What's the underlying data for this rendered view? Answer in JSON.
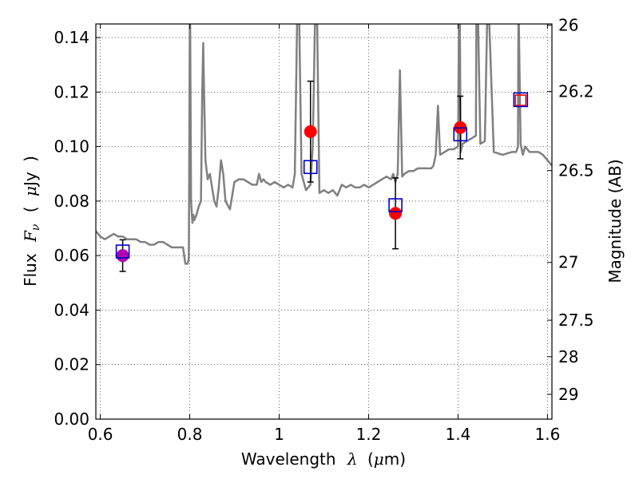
{
  "chart_data": {
    "type": "line",
    "title": "",
    "xlabel": {
      "prefix": "Wavelength",
      "symbol": "λ",
      "unit_open": "(",
      "unit_mu": "μ",
      "unit_rest": "m)"
    },
    "ylabel": {
      "prefix": "Flux",
      "symbol": "F",
      "sub": "ν",
      "paren_open": "(",
      "unit_mu": "μ",
      "unit_rest": "Jy",
      "paren_close": ")"
    },
    "y2label": "Magnitude (AB)",
    "xlim": [
      0.59,
      1.61
    ],
    "ylim": [
      0.0,
      0.145
    ],
    "grid": true,
    "x_ticks": [
      0.6,
      0.8,
      1.0,
      1.2,
      1.4,
      1.6
    ],
    "x_tick_labels": [
      "0.6",
      "0.8",
      "1",
      "1.2",
      "1.4",
      "1.6"
    ],
    "y_ticks": [
      0.0,
      0.02,
      0.04,
      0.06,
      0.08,
      0.1,
      0.12,
      0.14
    ],
    "y_tick_labels": [
      "0.00",
      "0.02",
      "0.04",
      "0.06",
      "0.08",
      "0.10",
      "0.12",
      "0.14"
    ],
    "y2_ticks": [
      {
        "label": "26",
        "flux": 0.1445
      },
      {
        "label": "26.2",
        "flux": 0.1202
      },
      {
        "label": "26.5",
        "flux": 0.0912
      },
      {
        "label": "27",
        "flux": 0.0575
      },
      {
        "label": "27.5",
        "flux": 0.0363
      },
      {
        "label": "28",
        "flux": 0.0229
      },
      {
        "label": "29",
        "flux": 0.0091
      }
    ],
    "colors": {
      "model": "#808080",
      "observed": "#ff0000",
      "synthetic": "#0000cc",
      "single_band": "#b000b0",
      "errorbar": "#000000"
    },
    "series": [
      {
        "kind": "model_spectrum",
        "x": [
          0.59,
          0.6,
          0.61,
          0.62,
          0.63,
          0.64,
          0.65,
          0.66,
          0.67,
          0.68,
          0.69,
          0.7,
          0.71,
          0.72,
          0.73,
          0.74,
          0.75,
          0.76,
          0.77,
          0.78,
          0.785,
          0.79,
          0.795,
          0.798,
          0.8,
          0.801,
          0.803,
          0.806,
          0.808,
          0.81,
          0.815,
          0.82,
          0.825,
          0.828,
          0.83,
          0.832,
          0.835,
          0.84,
          0.845,
          0.85,
          0.855,
          0.86,
          0.865,
          0.87,
          0.875,
          0.88,
          0.89,
          0.9,
          0.91,
          0.92,
          0.93,
          0.94,
          0.95,
          0.955,
          0.96,
          0.965,
          0.97,
          0.98,
          0.99,
          1.0,
          1.01,
          1.02,
          1.03,
          1.035,
          1.04,
          1.045,
          1.05,
          1.055,
          1.06,
          1.065,
          1.07,
          1.075,
          1.08,
          1.085,
          1.09,
          1.1,
          1.11,
          1.12,
          1.13,
          1.14,
          1.15,
          1.16,
          1.17,
          1.18,
          1.19,
          1.2,
          1.21,
          1.22,
          1.23,
          1.24,
          1.25,
          1.255,
          1.26,
          1.265,
          1.27,
          1.275,
          1.28,
          1.29,
          1.3,
          1.31,
          1.32,
          1.33,
          1.34,
          1.345,
          1.35,
          1.355,
          1.36,
          1.37,
          1.38,
          1.39,
          1.4,
          1.402,
          1.404,
          1.406,
          1.41,
          1.42,
          1.44,
          1.441,
          1.445,
          1.45,
          1.46,
          1.465,
          1.47,
          1.48,
          1.5,
          1.52,
          1.53,
          1.534,
          1.535,
          1.536,
          1.54,
          1.545,
          1.55,
          1.56,
          1.57,
          1.58,
          1.59,
          1.6,
          1.61
        ],
        "y": [
          0.069,
          0.067,
          0.066,
          0.067,
          0.068,
          0.067,
          0.067,
          0.066,
          0.066,
          0.066,
          0.065,
          0.065,
          0.064,
          0.064,
          0.065,
          0.065,
          0.064,
          0.063,
          0.063,
          0.063,
          0.063,
          0.057,
          0.057,
          0.059,
          0.145,
          0.145,
          0.08,
          0.072,
          0.075,
          0.073,
          0.075,
          0.078,
          0.08,
          0.12,
          0.138,
          0.12,
          0.095,
          0.088,
          0.09,
          0.085,
          0.08,
          0.078,
          0.085,
          0.095,
          0.09,
          0.08,
          0.077,
          0.087,
          0.088,
          0.088,
          0.087,
          0.086,
          0.086,
          0.09,
          0.087,
          0.088,
          0.087,
          0.086,
          0.087,
          0.086,
          0.085,
          0.086,
          0.085,
          0.09,
          0.145,
          0.145,
          0.09,
          0.087,
          0.084,
          0.085,
          0.086,
          0.1,
          0.145,
          0.145,
          0.083,
          0.084,
          0.083,
          0.084,
          0.082,
          0.086,
          0.085,
          0.086,
          0.085,
          0.085,
          0.086,
          0.085,
          0.086,
          0.087,
          0.088,
          0.089,
          0.088,
          0.09,
          0.087,
          0.09,
          0.128,
          0.089,
          0.09,
          0.091,
          0.091,
          0.092,
          0.092,
          0.092,
          0.092,
          0.093,
          0.097,
          0.115,
          0.097,
          0.098,
          0.099,
          0.099,
          0.1,
          0.145,
          0.145,
          0.098,
          0.101,
          0.102,
          0.104,
          0.145,
          0.145,
          0.101,
          0.102,
          0.145,
          0.145,
          0.098,
          0.097,
          0.098,
          0.098,
          0.1,
          0.145,
          0.145,
          0.101,
          0.097,
          0.1,
          0.098,
          0.098,
          0.098,
          0.097,
          0.095,
          0.093
        ]
      },
      {
        "kind": "observed_photometry",
        "marker": "circle",
        "x": [
          1.07,
          1.26,
          1.405
        ],
        "y": [
          0.1055,
          0.0755,
          0.107
        ],
        "yerr": [
          0.0185,
          0.013,
          0.0115
        ]
      },
      {
        "kind": "single_band_photometry",
        "marker": "circle",
        "x": [
          0.65
        ],
        "y": [
          0.06
        ],
        "yerr": [
          0.0058
        ]
      },
      {
        "kind": "synthetic_photometry",
        "marker": "square",
        "x": [
          0.65,
          1.07,
          1.26,
          1.405
        ],
        "y": [
          0.0615,
          0.0925,
          0.0785,
          0.1045
        ]
      },
      {
        "kind": "synthetic_photometry_red",
        "marker": "square",
        "x": [
          1.54
        ],
        "y": [
          0.117
        ]
      },
      {
        "kind": "synthetic_photometry_blue",
        "marker": "square",
        "x": [
          1.54
        ],
        "y": [
          0.1172
        ]
      }
    ]
  }
}
